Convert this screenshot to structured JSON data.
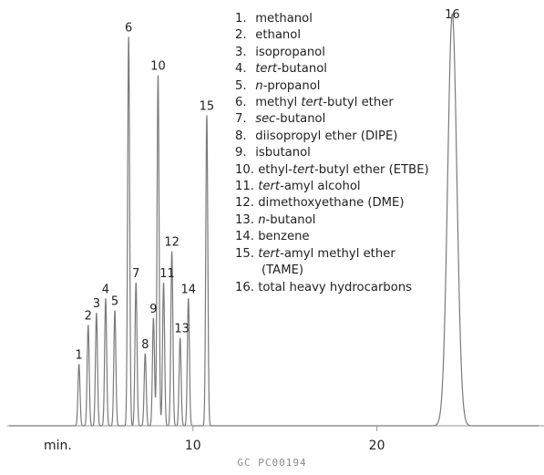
{
  "chart_data": {
    "type": "line",
    "title": "",
    "xlabel": "min.",
    "ylabel": "",
    "xlim": [
      0,
      28.8
    ],
    "ylim": [
      0,
      100
    ],
    "x_ticks": [
      10,
      20
    ],
    "x_tick_labels": [
      "10",
      "20"
    ],
    "grid": false,
    "legend_placement": "top-center",
    "line_color": "#7a7a7a",
    "peaks": [
      {
        "id": "1",
        "rt": 3.8,
        "height": 15.7
      },
      {
        "id": "2",
        "rt": 4.3,
        "height": 25.7
      },
      {
        "id": "3",
        "rt": 4.75,
        "height": 28.8
      },
      {
        "id": "4",
        "rt": 5.25,
        "height": 32.5
      },
      {
        "id": "5",
        "rt": 5.75,
        "height": 29.4
      },
      {
        "id": "6",
        "rt": 6.5,
        "height": 99.2
      },
      {
        "id": "7",
        "rt": 6.9,
        "height": 36.5
      },
      {
        "id": "8",
        "rt": 7.4,
        "height": 18.4
      },
      {
        "id": "9",
        "rt": 7.85,
        "height": 27.5
      },
      {
        "id": "10",
        "rt": 8.1,
        "height": 89.4
      },
      {
        "id": "11",
        "rt": 8.4,
        "height": 36.5
      },
      {
        "id": "12",
        "rt": 8.85,
        "height": 44.5
      },
      {
        "id": "13",
        "rt": 9.3,
        "height": 22.4
      },
      {
        "id": "14",
        "rt": 9.75,
        "height": 32.5
      },
      {
        "id": "15",
        "rt": 10.75,
        "height": 79.2
      },
      {
        "id": "16",
        "rt": 24.1,
        "height": 105,
        "broad": true
      }
    ],
    "legend": [
      {
        "num": "1.",
        "parts": [
          {
            "text": "methanol"
          }
        ]
      },
      {
        "num": "2.",
        "parts": [
          {
            "text": "ethanol"
          }
        ]
      },
      {
        "num": "3.",
        "parts": [
          {
            "text": "isopropanol"
          }
        ]
      },
      {
        "num": "4.",
        "parts": [
          {
            "text": "tert",
            "italic": true
          },
          {
            "text": "-butanol"
          }
        ]
      },
      {
        "num": "5.",
        "parts": [
          {
            "text": "n",
            "italic": true
          },
          {
            "text": "-propanol"
          }
        ]
      },
      {
        "num": "6.",
        "parts": [
          {
            "text": "methyl "
          },
          {
            "text": "tert",
            "italic": true
          },
          {
            "text": "-butyl ether"
          }
        ]
      },
      {
        "num": "7.",
        "parts": [
          {
            "text": "sec",
            "italic": true
          },
          {
            "text": "-butanol"
          }
        ]
      },
      {
        "num": "8.",
        "parts": [
          {
            "text": "diisopropyl ether (DIPE)"
          }
        ]
      },
      {
        "num": "9.",
        "parts": [
          {
            "text": "isbutanol"
          }
        ]
      },
      {
        "num": "10.",
        "parts": [
          {
            "text": "ethyl-"
          },
          {
            "text": "tert",
            "italic": true
          },
          {
            "text": "-butyl ether (ETBE)"
          }
        ]
      },
      {
        "num": "11.",
        "parts": [
          {
            "text": "tert",
            "italic": true
          },
          {
            "text": "-amyl alcohol"
          }
        ]
      },
      {
        "num": "12.",
        "parts": [
          {
            "text": "dimethoxyethane (DME)"
          }
        ]
      },
      {
        "num": "13.",
        "parts": [
          {
            "text": "n",
            "italic": true
          },
          {
            "text": "-butanol"
          }
        ]
      },
      {
        "num": "14.",
        "parts": [
          {
            "text": "benzene"
          }
        ]
      },
      {
        "num": "15.",
        "parts": [
          {
            "text": "tert",
            "italic": true
          },
          {
            "text": "-amyl methyl ether"
          }
        ],
        "continuation": "(TAME)"
      },
      {
        "num": "16.",
        "parts": [
          {
            "text": "total heavy hydrocarbons"
          }
        ]
      }
    ]
  },
  "footer": {
    "image_id": "GC PC00194"
  }
}
